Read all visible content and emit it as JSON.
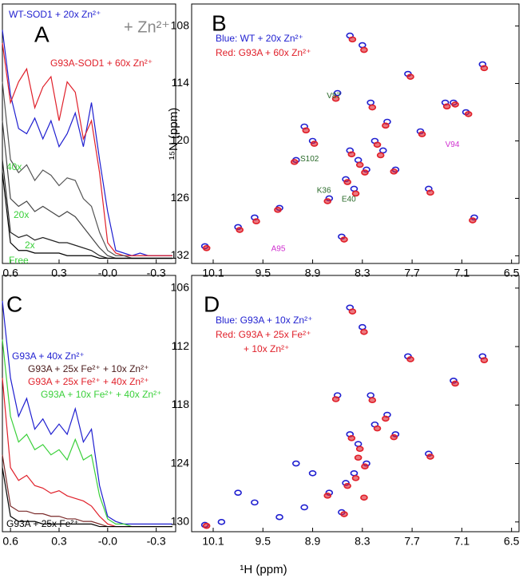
{
  "chart_data": [
    {
      "type": "line",
      "panel": "A",
      "annotation": "+ Zn²⁺",
      "x": [
        0.65,
        0.6,
        0.55,
        0.5,
        0.45,
        0.4,
        0.35,
        0.3,
        0.25,
        0.2,
        0.15,
        0.1,
        0.05,
        0.0,
        -0.05,
        -0.1,
        -0.15,
        -0.2,
        -0.25,
        -0.3,
        -0.35,
        -0.4
      ],
      "xlim": [
        0.65,
        -0.42
      ],
      "xticks": [
        0.6,
        0.3,
        {
          "value": 0,
          "label": "-0.0"
        },
        -0.3
      ],
      "ylim": [
        0,
        100
      ],
      "series": [
        {
          "name": "WT-SOD1 + 20x Zn²⁺",
          "color": "#1f1fd0",
          "label_color": "#1f1fd0",
          "values": [
            90,
            65,
            52,
            50,
            56,
            48,
            55,
            45,
            50,
            58,
            45,
            62,
            40,
            20,
            5,
            4,
            3,
            4,
            3,
            3,
            3,
            3
          ]
        },
        {
          "name": "G93A-SOD1 + 60x Zn²⁺",
          "color": "#e0202a",
          "label_color": "#e0202a",
          "values": [
            85,
            62,
            70,
            75,
            60,
            68,
            72,
            55,
            70,
            66,
            48,
            55,
            35,
            8,
            4,
            3,
            3,
            3,
            3,
            3,
            3,
            3
          ]
        },
        {
          "name": "40x",
          "color": "#555555",
          "label_color": "#3ad03a",
          "values": [
            70,
            40,
            35,
            38,
            32,
            36,
            34,
            30,
            33,
            32,
            25,
            22,
            12,
            5,
            3,
            3,
            2,
            2,
            2,
            2,
            2,
            2
          ]
        },
        {
          "name": "20x",
          "color": "#444444",
          "label_color": "#3ad03a",
          "values": [
            55,
            25,
            22,
            24,
            20,
            22,
            20,
            18,
            20,
            18,
            14,
            10,
            6,
            3,
            2,
            2,
            2,
            2,
            2,
            2,
            2,
            2
          ]
        },
        {
          "name": "2x",
          "color": "#222222",
          "label_color": "#3ad03a",
          "values": [
            40,
            12,
            10,
            11,
            9,
            10,
            9,
            8,
            8,
            7,
            6,
            5,
            3,
            2,
            2,
            2,
            2,
            2,
            2,
            2,
            2,
            2
          ]
        },
        {
          "name": "Free",
          "color": "#000000",
          "label_color": "#3ad03a",
          "values": [
            35,
            8,
            5,
            5,
            4,
            4,
            4,
            4,
            3,
            3,
            3,
            3,
            2,
            2,
            2,
            2,
            2,
            2,
            2,
            2,
            2,
            2
          ]
        }
      ]
    },
    {
      "type": "scatter",
      "panel": "B",
      "ylabel": "¹⁵N (ppm)",
      "xlim": [
        10.36,
        6.41
      ],
      "xticks": [
        10.1,
        9.5,
        8.9,
        8.3,
        7.7,
        7.1,
        6.5
      ],
      "ylim": [
        105.7,
        132.8
      ],
      "yticks": [
        108,
        114,
        120,
        126,
        132
      ],
      "series": [
        {
          "name": "Blue: WT + 20x Zn²⁺",
          "color": "#1f1fd0",
          "x": [
            8.45,
            8.3,
            7.75,
            7.2,
            6.85,
            8.6,
            8.2,
            8.0,
            7.6,
            7.3,
            8.9,
            9.1,
            8.45,
            8.35,
            8.25,
            8.15,
            8.05,
            8.5,
            8.7,
            9.6,
            9.3,
            10.2,
            9.8,
            7.5,
            7.9,
            8.4,
            8.55,
            7.05,
            6.95,
            9.0
          ],
          "values": [
            109,
            110,
            113,
            116,
            112,
            115,
            116,
            118,
            119,
            116,
            120,
            122,
            121,
            122,
            123,
            120,
            121,
            124,
            126,
            128,
            127,
            131,
            129,
            125,
            123,
            125,
            130,
            117,
            128,
            118.5
          ]
        },
        {
          "name": "Red: G93A + 60x Zn²⁺",
          "color": "#e0202a",
          "x": [
            8.42,
            8.28,
            7.72,
            7.18,
            6.83,
            8.62,
            8.18,
            8.02,
            7.58,
            7.28,
            8.88,
            9.12,
            8.43,
            8.33,
            8.27,
            8.12,
            8.08,
            8.48,
            8.72,
            9.58,
            9.32,
            10.18,
            9.78,
            7.48,
            7.92,
            8.38,
            8.52,
            7.02,
            6.97,
            8.98
          ],
          "values": [
            109.4,
            110.5,
            113.3,
            116.2,
            112.4,
            115.6,
            116.5,
            118.4,
            119.3,
            116.4,
            120.3,
            122.2,
            121.4,
            122.5,
            123.3,
            120.4,
            121.5,
            124.3,
            126.3,
            128.4,
            127.2,
            131.2,
            129.3,
            125.4,
            123.2,
            125.5,
            130.3,
            117.2,
            128.3,
            118.9
          ]
        }
      ],
      "annotations": [
        {
          "text": "V87",
          "x": 8.73,
          "y": 115.3,
          "color": "#2a6a2a"
        },
        {
          "text": "S102",
          "x": 9.05,
          "y": 121.9,
          "color": "#2a6a2a"
        },
        {
          "text": "K36",
          "x": 8.85,
          "y": 125.2,
          "color": "#2a6a2a"
        },
        {
          "text": "E40",
          "x": 8.55,
          "y": 126.1,
          "color": "#2a6a2a"
        },
        {
          "text": "V94",
          "x": 7.3,
          "y": 120.4,
          "color": "#d030d0"
        },
        {
          "text": "A95",
          "x": 9.4,
          "y": 131.3,
          "color": "#d030d0"
        }
      ]
    },
    {
      "type": "line",
      "panel": "C",
      "x": [
        0.65,
        0.6,
        0.55,
        0.5,
        0.45,
        0.4,
        0.35,
        0.3,
        0.25,
        0.2,
        0.15,
        0.1,
        0.05,
        0.0,
        -0.05,
        -0.1,
        -0.15,
        -0.2,
        -0.25,
        -0.3,
        -0.35,
        -0.4
      ],
      "xlim": [
        0.65,
        -0.42
      ],
      "xticks": [
        0.6,
        0.3,
        {
          "value": 0,
          "label": "-0.0"
        },
        -0.3
      ],
      "ylim": [
        0,
        100
      ],
      "series": [
        {
          "name": "G93A + 40x Zn²⁺",
          "color": "#1f1fd0",
          "label_color": "#1f1fd0",
          "values": [
            90,
            60,
            45,
            52,
            40,
            44,
            38,
            42,
            38,
            48,
            35,
            40,
            18,
            6,
            4,
            3,
            3,
            3,
            3,
            3,
            3,
            3
          ]
        },
        {
          "name": "G93A + 25x Fe²⁺ + 10x Zn²⁺",
          "color": "#7a2a2a",
          "label_color": "#4a1a1a",
          "values": [
            30,
            10,
            8,
            8,
            7,
            7,
            6,
            6,
            5,
            5,
            4,
            4,
            3,
            2,
            2,
            2,
            2,
            2,
            2,
            2,
            2,
            2
          ]
        },
        {
          "name": "G93A + 25x Fe²⁺ + 40x Zn²⁺",
          "color": "#e0202a",
          "label_color": "#e0202a",
          "values": [
            60,
            25,
            20,
            22,
            18,
            17,
            15,
            16,
            14,
            13,
            12,
            10,
            6,
            3,
            2,
            2,
            2,
            2,
            2,
            2,
            2,
            2
          ]
        },
        {
          "name": "G93A + 10x Fe²⁺ + 40x Zn²⁺",
          "color": "#3ad03a",
          "label_color": "#3ad03a",
          "values": [
            75,
            45,
            35,
            38,
            32,
            34,
            30,
            32,
            28,
            36,
            28,
            30,
            14,
            5,
            3,
            3,
            2,
            2,
            2,
            2,
            2,
            2
          ]
        },
        {
          "name": "G93A + 25x Fe²⁺",
          "color": "#000000",
          "label_color": "#000000",
          "values": [
            25,
            6,
            4,
            4,
            4,
            3,
            3,
            3,
            3,
            3,
            3,
            3,
            2,
            2,
            2,
            2,
            2,
            2,
            2,
            2,
            2,
            2
          ]
        }
      ]
    },
    {
      "type": "scatter",
      "panel": "D",
      "xlim": [
        10.36,
        6.41
      ],
      "xticks": [
        10.1,
        9.5,
        8.9,
        8.3,
        7.7,
        7.1,
        6.5
      ],
      "ylim": [
        104.7,
        131.0
      ],
      "yticks": [
        106,
        112,
        118,
        124,
        130
      ],
      "series": [
        {
          "name": "Blue: G93A + 10x Zn²⁺",
          "color": "#1f1fd0",
          "x": [
            8.45,
            8.3,
            7.75,
            7.2,
            6.85,
            8.6,
            8.2,
            8.0,
            8.45,
            8.35,
            8.25,
            8.15,
            8.5,
            8.7,
            9.6,
            9.3,
            10.2,
            9.8,
            7.5,
            7.9,
            8.4,
            8.55,
            8.9,
            9.1,
            10.0,
            9.0
          ],
          "values": [
            108,
            110,
            113,
            115.5,
            113,
            117,
            117,
            119,
            121,
            122,
            124,
            120,
            126,
            127,
            128,
            129.5,
            130.3,
            127,
            123,
            121,
            125,
            129,
            125,
            124,
            130,
            128.5
          ]
        },
        {
          "name": "Red: G93A + 25x Fe²⁺",
          "legend_extra": "+ 10x Zn²⁺",
          "color": "#e0202a",
          "x": [
            8.42,
            8.28,
            7.72,
            7.18,
            6.83,
            8.62,
            8.18,
            8.02,
            8.43,
            8.33,
            8.27,
            8.12,
            8.48,
            8.72,
            10.18,
            7.48,
            7.92,
            8.38,
            8.52,
            8.28,
            8.35
          ],
          "values": [
            108.4,
            110.5,
            113.3,
            115.8,
            113.4,
            117.4,
            117.5,
            119.4,
            121.4,
            122.5,
            124.3,
            120.4,
            126.3,
            127.3,
            130.4,
            123.3,
            121.3,
            125.5,
            129.2,
            127.5,
            123.4
          ]
        }
      ]
    }
  ],
  "shared_xlabel": "¹H (ppm)"
}
